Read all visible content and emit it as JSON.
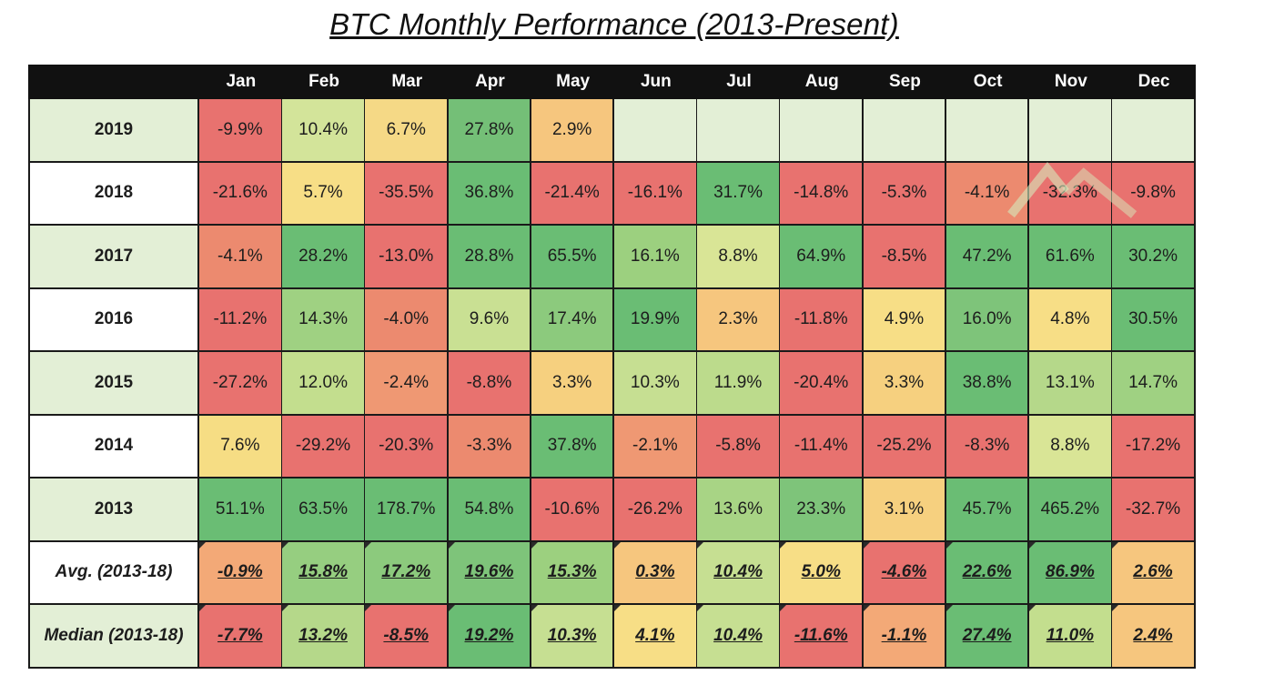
{
  "page": {
    "title": "BTC Monthly Performance (2013-Present)"
  },
  "colors": {
    "header_bg": "#111111",
    "header_text": "#ffffff",
    "label_bg_green": "#e3efd6",
    "label_bg_white": "#ffffff",
    "empty_cell": "#e3efd6",
    "scale_low": "#e8726f",
    "scale_mid": "#f6dd84",
    "scale_high": "#6abd74"
  },
  "chart_data": {
    "type": "table",
    "title": "BTC Monthly Performance (2013-Present)",
    "columns": [
      "Jan",
      "Feb",
      "Mar",
      "Apr",
      "May",
      "Jun",
      "Jul",
      "Aug",
      "Sep",
      "Oct",
      "Nov",
      "Dec"
    ],
    "rows": [
      {
        "label": "2019",
        "label_bg": "green",
        "stat": false,
        "values": [
          "-9.9%",
          "10.4%",
          "6.7%",
          "27.8%",
          "2.9%",
          "",
          "",
          "",
          "",
          "",
          "",
          ""
        ],
        "colors": [
          "#e8726f",
          "#d3e49a",
          "#f5d986",
          "#74bf77",
          "#f6c67e",
          "#e3efd6",
          "#e3efd6",
          "#e3efd6",
          "#e3efd6",
          "#e3efd6",
          "#e3efd6",
          "#e3efd6"
        ]
      },
      {
        "label": "2018",
        "label_bg": "white",
        "stat": false,
        "values": [
          "-21.6%",
          "5.7%",
          "-35.5%",
          "36.8%",
          "-21.4%",
          "-16.1%",
          "31.7%",
          "-14.8%",
          "-5.3%",
          "-4.1%",
          "-32.3%",
          "-9.8%"
        ],
        "colors": [
          "#e8726f",
          "#f7de86",
          "#e8726f",
          "#6abd74",
          "#e8726f",
          "#e8726f",
          "#6abd74",
          "#e8726f",
          "#e8726f",
          "#ec8a6f",
          "#e8726f",
          "#e8726f"
        ]
      },
      {
        "label": "2017",
        "label_bg": "green",
        "stat": false,
        "values": [
          "-4.1%",
          "28.2%",
          "-13.0%",
          "28.8%",
          "65.5%",
          "16.1%",
          "8.8%",
          "64.9%",
          "-8.5%",
          "47.2%",
          "61.6%",
          "30.2%"
        ],
        "colors": [
          "#ec8a6f",
          "#6abd74",
          "#e8726f",
          "#6abd74",
          "#6abd74",
          "#9cd07f",
          "#d9e596",
          "#6abd74",
          "#e8726f",
          "#6abd74",
          "#6abd74",
          "#6abd74"
        ]
      },
      {
        "label": "2016",
        "label_bg": "white",
        "stat": false,
        "values": [
          "-11.2%",
          "14.3%",
          "-4.0%",
          "9.6%",
          "17.4%",
          "19.9%",
          "2.3%",
          "-11.8%",
          "4.9%",
          "16.0%",
          "4.8%",
          "30.5%"
        ],
        "colors": [
          "#e8726f",
          "#9fd182",
          "#ec8a6f",
          "#c9e093",
          "#8cca7d",
          "#6abd74",
          "#f6c67e",
          "#e8726f",
          "#f7de86",
          "#7ec47a",
          "#f7de86",
          "#6abd74"
        ]
      },
      {
        "label": "2015",
        "label_bg": "green",
        "stat": false,
        "values": [
          "-27.2%",
          "12.0%",
          "-2.4%",
          "-8.8%",
          "3.3%",
          "10.3%",
          "11.9%",
          "-20.4%",
          "3.3%",
          "38.8%",
          "13.1%",
          "14.7%"
        ],
        "colors": [
          "#e8726f",
          "#c3de8e",
          "#ef9873",
          "#e8726f",
          "#f6d07f",
          "#c6df92",
          "#bcdb8c",
          "#e8726f",
          "#f6d07f",
          "#6abd74",
          "#b5d88a",
          "#9fd182"
        ]
      },
      {
        "label": "2014",
        "label_bg": "white",
        "stat": false,
        "values": [
          "7.6%",
          "-29.2%",
          "-20.3%",
          "-3.3%",
          "37.8%",
          "-2.1%",
          "-5.8%",
          "-11.4%",
          "-25.2%",
          "-8.3%",
          "8.8%",
          "-17.2%"
        ],
        "colors": [
          "#f6dd84",
          "#e8726f",
          "#e8726f",
          "#ec8a6f",
          "#6abd74",
          "#ef9873",
          "#e8726f",
          "#e8726f",
          "#e8726f",
          "#e8726f",
          "#d9e596",
          "#e8726f"
        ]
      },
      {
        "label": "2013",
        "label_bg": "green",
        "stat": false,
        "values": [
          "51.1%",
          "63.5%",
          "178.7%",
          "54.8%",
          "-10.6%",
          "-26.2%",
          "13.6%",
          "23.3%",
          "3.1%",
          "45.7%",
          "465.2%",
          "-32.7%"
        ],
        "colors": [
          "#6abd74",
          "#6abd74",
          "#6abd74",
          "#6abd74",
          "#e8726f",
          "#e8726f",
          "#a8d485",
          "#7ec47a",
          "#f6d07f",
          "#6abd74",
          "#6abd74",
          "#e8726f"
        ]
      },
      {
        "label": "Avg. (2013-18)",
        "label_bg": "white",
        "stat": true,
        "values": [
          "-0.9%",
          "15.8%",
          "17.2%",
          "19.6%",
          "15.3%",
          "0.3%",
          "10.4%",
          "5.0%",
          "-4.6%",
          "22.6%",
          "86.9%",
          "2.6%"
        ],
        "colors": [
          "#f3a977",
          "#96ce80",
          "#8cca7d",
          "#7ec47a",
          "#9cd07f",
          "#f6c67e",
          "#c6df92",
          "#f7de86",
          "#e8726f",
          "#6abd74",
          "#6abd74",
          "#f6c67e"
        ]
      },
      {
        "label": "Median (2013-18)",
        "label_bg": "green",
        "stat": true,
        "values": [
          "-7.7%",
          "13.2%",
          "-8.5%",
          "19.2%",
          "10.3%",
          "4.1%",
          "10.4%",
          "-11.6%",
          "-1.1%",
          "27.4%",
          "11.0%",
          "2.4%"
        ],
        "colors": [
          "#e8726f",
          "#b5d88a",
          "#e8726f",
          "#6abd74",
          "#c6df92",
          "#f7de86",
          "#c6df92",
          "#e8726f",
          "#f3a977",
          "#6abd74",
          "#c3de8e",
          "#f6c67e"
        ]
      }
    ]
  }
}
